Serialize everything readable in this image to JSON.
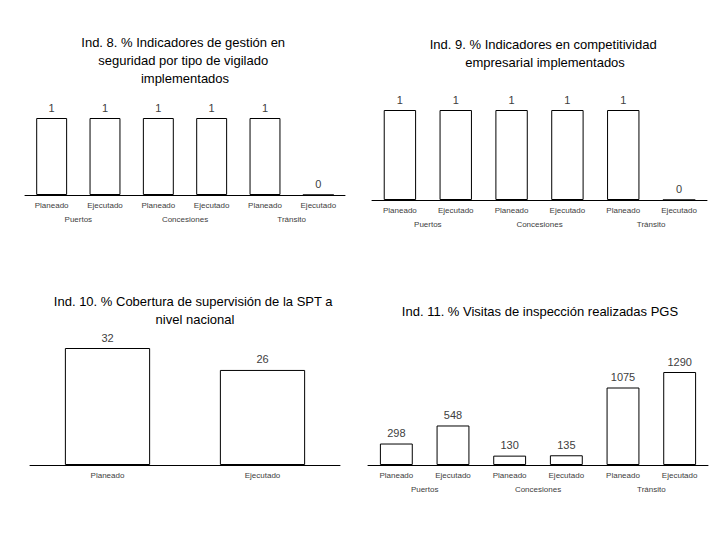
{
  "chart_data": [
    {
      "type": "bar",
      "title": "Ind. 8. % Indicadores de gestión en seguridad por tipo de vigilado implementados",
      "categories": [
        "Planeado",
        "Ejecutado",
        "Planeado",
        "Ejecutado",
        "Planeado",
        "Ejecutado"
      ],
      "groups": [
        "Puertos",
        "Concesiones",
        "Tránsito"
      ],
      "values": [
        1,
        1,
        1,
        1,
        1,
        0
      ],
      "color": "#ffffff",
      "ylim": [
        0,
        1
      ],
      "data_labels": true,
      "tick_labels": "x"
    },
    {
      "type": "bar",
      "title": "Ind. 9. % Indicadores en competitividad empresarial implementados",
      "categories": [
        "Planeado",
        "Ejecutado",
        "Planeado",
        "Ejecutado",
        "Planeado",
        "Ejecutado"
      ],
      "groups": [
        "Puertos",
        "Concesiones",
        "Tránsito"
      ],
      "values": [
        1,
        1,
        1,
        1,
        1,
        0
      ],
      "color": "#ffffff",
      "ylim": [
        0,
        1
      ],
      "data_labels": true,
      "tick_labels": "x"
    },
    {
      "type": "bar",
      "title": "Ind. 10. % Cobertura de supervisión de la SPT a nivel nacional",
      "categories": [
        "Planeado",
        "Ejecutado"
      ],
      "values": [
        32,
        26
      ],
      "color": "#ffffff",
      "ylim": [
        0,
        32
      ],
      "data_labels": true,
      "tick_labels": "x"
    },
    {
      "type": "bar",
      "title": "Ind. 11. % Visitas de inspección realizadas PGS",
      "categories": [
        "Planeado",
        "Ejecutado",
        "Planeado",
        "Ejecutado",
        "Planeado",
        "Ejecutado"
      ],
      "groups": [
        "Puertos",
        "Concesiones",
        "Tránsito"
      ],
      "values": [
        298,
        548,
        130,
        135,
        1075,
        1290
      ],
      "color": "#ffffff",
      "ylim": [
        0,
        1290
      ],
      "data_labels": true,
      "tick_labels": "x"
    }
  ]
}
